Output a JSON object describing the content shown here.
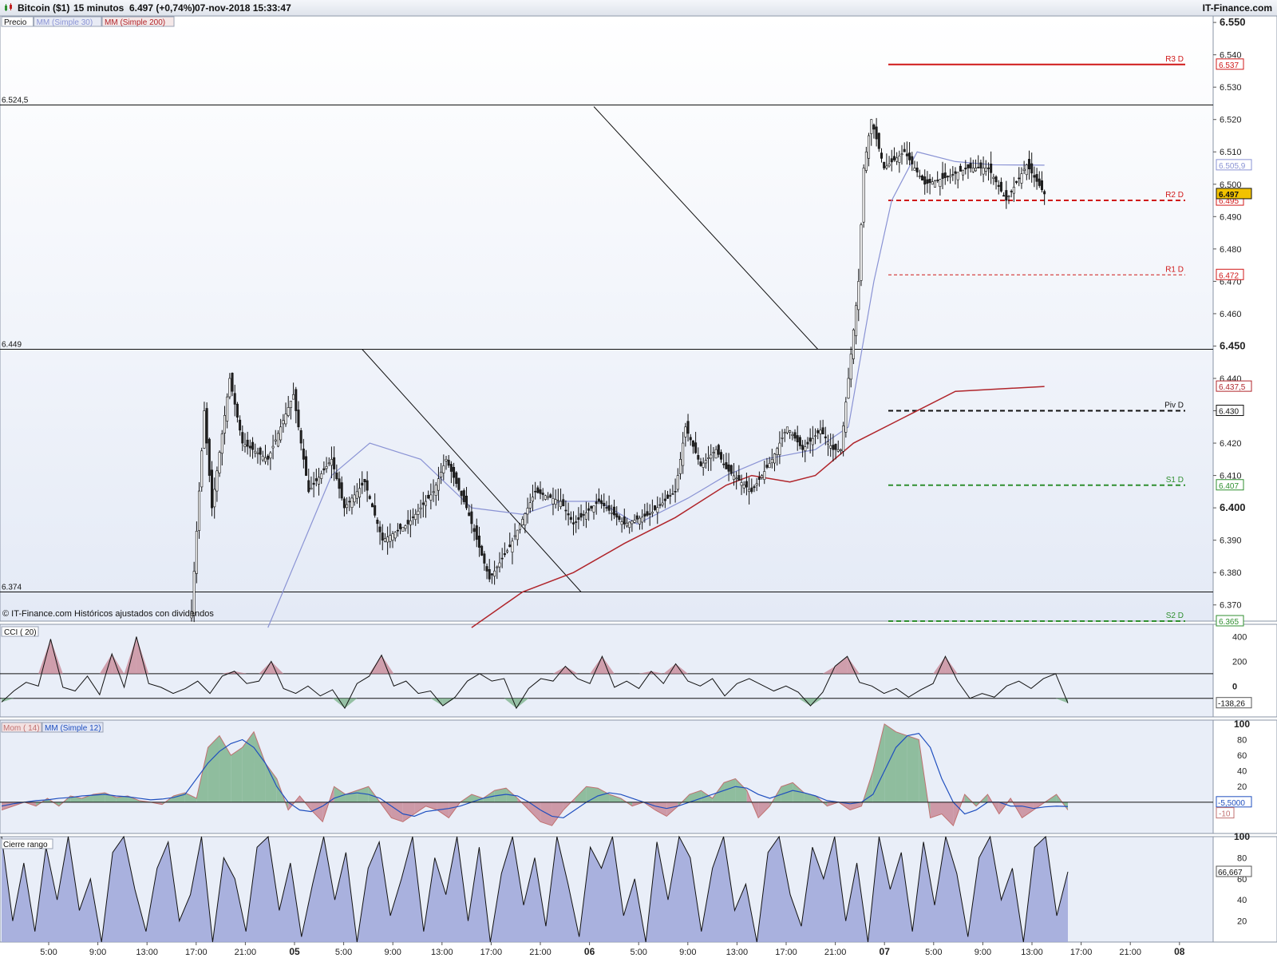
{
  "header": {
    "symbol": "Bitcoin ($1)",
    "interval": "15 minutos",
    "quote": "6.497 (+0,74%)",
    "datetime": "07-nov-2018 15:33:47",
    "brand": "IT-Finance.com"
  },
  "colors": {
    "price_up": "#ffffff",
    "price_down": "#222222",
    "ma30": "#8a93d4",
    "ma200": "#b0252b",
    "resistance": "#d01818",
    "support": "#2f8f2f",
    "pivot": "#111111",
    "panel_bg": "#e9eef8",
    "osc_pos": "#7fb48e",
    "osc_neg": "#c88a99",
    "range_fill": "#9ea6d9"
  },
  "chart_data": [
    {
      "type": "candlestick",
      "legend": {
        "price": "Precio",
        "ma30": "MM (Simple 30)",
        "ma200": "MM (Simple 200)"
      },
      "watermark": "© IT-Finance.com  Históricos ajustados con dividendos",
      "ylim": [
        6.365,
        6.552
      ],
      "x_ticks": [
        "5:00",
        "9:00",
        "13:00",
        "17:00",
        "21:00",
        "05",
        "5:00",
        "9:00",
        "13:00",
        "17:00",
        "21:00",
        "06",
        "5:00",
        "9:00",
        "13:00",
        "17:00",
        "21:00",
        "07",
        "5:00",
        "9:00",
        "13:00",
        "17:00",
        "21:00",
        "08"
      ],
      "y_ticks": [
        "6.550",
        "6.540",
        "6.530",
        "6.520",
        "6.510",
        "6.500",
        "6.490",
        "6.480",
        "6.470",
        "6.460",
        "6.450",
        "6.440",
        "6.430",
        "6.420",
        "6.410",
        "6.400",
        "6.390",
        "6.380",
        "6.370"
      ],
      "horizontal_lines": [
        {
          "label": "6.524,5",
          "value": 6.5245
        },
        {
          "label": "6.449",
          "value": 6.449
        },
        {
          "label": "6.374",
          "value": 6.374
        }
      ],
      "pivots": [
        {
          "name": "R3 D",
          "value": 6.537,
          "label": "6.537"
        },
        {
          "name": "R2 D",
          "value": 6.495,
          "label": "6.495"
        },
        {
          "name": "R1 D",
          "value": 6.472,
          "label": "6.472"
        },
        {
          "name": "Piv D",
          "value": 6.43,
          "label": "6.430"
        },
        {
          "name": "S1 D",
          "value": 6.407,
          "label": "6.407"
        },
        {
          "name": "S2 D",
          "value": 6.365,
          "label": "6.365"
        }
      ],
      "value_labels": {
        "last": "6.497",
        "ma30": "6.505,9",
        "ma200": "6.437,5"
      },
      "price_path": [
        [
          0,
          6.368
        ],
        [
          5,
          6.43
        ],
        [
          8,
          6.4
        ],
        [
          15,
          6.44
        ],
        [
          20,
          6.42
        ],
        [
          30,
          6.415
        ],
        [
          40,
          6.435
        ],
        [
          46,
          6.405
        ],
        [
          55,
          6.415
        ],
        [
          60,
          6.4
        ],
        [
          68,
          6.408
        ],
        [
          75,
          6.39
        ],
        [
          85,
          6.395
        ],
        [
          95,
          6.405
        ],
        [
          100,
          6.415
        ],
        [
          108,
          6.4
        ],
        [
          117,
          6.378
        ],
        [
          125,
          6.388
        ],
        [
          135,
          6.405
        ],
        [
          145,
          6.402
        ],
        [
          150,
          6.395
        ],
        [
          160,
          6.402
        ],
        [
          170,
          6.395
        ],
        [
          180,
          6.398
        ],
        [
          190,
          6.405
        ],
        [
          194,
          6.425
        ],
        [
          200,
          6.413
        ],
        [
          206,
          6.418
        ],
        [
          210,
          6.412
        ],
        [
          220,
          6.405
        ],
        [
          228,
          6.415
        ],
        [
          234,
          6.425
        ],
        [
          240,
          6.418
        ],
        [
          247,
          6.424
        ],
        [
          252,
          6.418
        ],
        [
          255,
          6.418
        ],
        [
          258,
          6.44
        ],
        [
          262,
          6.47
        ],
        [
          264,
          6.505
        ],
        [
          267,
          6.52
        ],
        [
          272,
          6.505
        ],
        [
          280,
          6.51
        ],
        [
          288,
          6.5
        ],
        [
          296,
          6.502
        ],
        [
          305,
          6.505
        ],
        [
          313,
          6.505
        ],
        [
          320,
          6.495
        ],
        [
          328,
          6.506
        ],
        [
          335,
          6.497
        ]
      ],
      "ma30_path": [
        [
          30,
          6.363
        ],
        [
          55,
          6.41
        ],
        [
          70,
          6.42
        ],
        [
          90,
          6.415
        ],
        [
          110,
          6.4
        ],
        [
          130,
          6.398
        ],
        [
          145,
          6.402
        ],
        [
          160,
          6.402
        ],
        [
          175,
          6.395
        ],
        [
          195,
          6.403
        ],
        [
          210,
          6.41
        ],
        [
          225,
          6.415
        ],
        [
          245,
          6.418
        ],
        [
          258,
          6.425
        ],
        [
          268,
          6.47
        ],
        [
          275,
          6.495
        ],
        [
          285,
          6.51
        ],
        [
          300,
          6.507
        ],
        [
          315,
          6.506
        ],
        [
          335,
          6.5059
        ]
      ],
      "ma200_path": [
        [
          110,
          6.363
        ],
        [
          130,
          6.374
        ],
        [
          150,
          6.38
        ],
        [
          170,
          6.389
        ],
        [
          190,
          6.397
        ],
        [
          210,
          6.407
        ],
        [
          220,
          6.41
        ],
        [
          235,
          6.408
        ],
        [
          245,
          6.41
        ],
        [
          260,
          6.42
        ],
        [
          280,
          6.428
        ],
        [
          300,
          6.436
        ],
        [
          335,
          6.4375
        ]
      ],
      "trendlines": [
        {
          "from": [
            67,
            6.449
          ],
          "to": [
            153,
            6.374
          ]
        },
        {
          "from": [
            158,
            6.524
          ],
          "to": [
            246,
            6.449
          ]
        }
      ]
    },
    {
      "type": "line",
      "legend": "CCI ( 20)",
      "ylim": [
        -250,
        500
      ],
      "y_ticks": [
        "400",
        "200",
        "0"
      ],
      "reference_lines": [
        100,
        -100
      ],
      "last_label": "-138,26",
      "series": [
        {
          "values": [
            -130,
            -40,
            30,
            0,
            380,
            -10,
            -40,
            80,
            -70,
            260,
            -10,
            400,
            20,
            -10,
            -60,
            -20,
            40,
            -60,
            80,
            120,
            20,
            40,
            200,
            -20,
            -60,
            0,
            -80,
            -30,
            -180,
            20,
            80,
            250,
            0,
            40,
            -60,
            -40,
            -160,
            -90,
            40,
            100,
            40,
            60,
            -180,
            -20,
            60,
            40,
            160,
            60,
            20,
            240,
            -10,
            40,
            -20,
            120,
            20,
            180,
            40,
            0,
            60,
            -80,
            20,
            60,
            10,
            -40,
            0,
            -50,
            -160,
            -50,
            160,
            240,
            30,
            0,
            -60,
            -20,
            -90,
            -30,
            20,
            240,
            40,
            -100,
            -60,
            -90,
            0,
            40,
            -20,
            60,
            100,
            -138
          ]
        }
      ]
    },
    {
      "type": "area",
      "legend": {
        "mom": "Mom ( 14)",
        "ma": "MM (Simple 12)"
      },
      "ylim": [
        -40,
        105
      ],
      "y_ticks": [
        "100",
        "80",
        "60",
        "40",
        "20",
        "0"
      ],
      "last_labels": [
        "-5,5000",
        "-10"
      ],
      "series": [
        {
          "name": "Mom ( 14)",
          "values": [
            -10,
            -5,
            0,
            -5,
            5,
            -5,
            8,
            5,
            10,
            12,
            6,
            8,
            2,
            0,
            -3,
            8,
            12,
            5,
            70,
            85,
            60,
            70,
            90,
            50,
            30,
            -10,
            8,
            -10,
            -25,
            20,
            10,
            15,
            20,
            0,
            -20,
            -25,
            -15,
            -5,
            -10,
            -20,
            0,
            10,
            5,
            15,
            18,
            5,
            -10,
            -25,
            -30,
            -10,
            5,
            20,
            18,
            10,
            5,
            -5,
            0,
            -10,
            -18,
            -5,
            10,
            15,
            5,
            25,
            30,
            15,
            -20,
            -5,
            20,
            25,
            12,
            8,
            -5,
            0,
            -10,
            -5,
            40,
            100,
            90,
            85,
            80,
            -20,
            -15,
            -30,
            10,
            -5,
            10,
            -15,
            5,
            -20,
            -10,
            0,
            10,
            -10
          ]
        },
        {
          "name": "MM (Simple 12)",
          "values": [
            -5,
            -2,
            0,
            2,
            3,
            5,
            6,
            8,
            9,
            10,
            8,
            7,
            5,
            3,
            4,
            6,
            10,
            30,
            50,
            65,
            75,
            80,
            70,
            50,
            20,
            0,
            -10,
            -12,
            -5,
            5,
            10,
            12,
            10,
            5,
            -5,
            -15,
            -18,
            -12,
            -10,
            -8,
            -5,
            0,
            5,
            8,
            10,
            8,
            0,
            -10,
            -18,
            -20,
            -10,
            0,
            8,
            12,
            10,
            5,
            0,
            -5,
            -8,
            -5,
            0,
            5,
            10,
            15,
            20,
            18,
            10,
            5,
            10,
            15,
            12,
            8,
            2,
            0,
            -2,
            0,
            10,
            40,
            70,
            85,
            88,
            70,
            30,
            0,
            -15,
            -10,
            0,
            0,
            -5,
            -5,
            -8,
            -6,
            -5,
            -5.5
          ]
        }
      ]
    },
    {
      "type": "area",
      "legend": "Cierre rango",
      "ylim": [
        0,
        100
      ],
      "y_ticks": [
        "100",
        "80",
        "60",
        "40",
        "20"
      ],
      "last_label": "66,667",
      "series": [
        {
          "values": [
            100,
            20,
            75,
            10,
            90,
            40,
            100,
            30,
            60,
            0,
            85,
            100,
            50,
            10,
            70,
            95,
            20,
            45,
            100,
            0,
            80,
            60,
            10,
            90,
            100,
            30,
            75,
            5,
            55,
            100,
            40,
            85,
            0,
            70,
            95,
            25,
            60,
            100,
            10,
            80,
            45,
            100,
            20,
            90,
            0,
            65,
            100,
            35,
            80,
            15,
            100,
            55,
            5,
            90,
            70,
            100,
            25,
            60,
            0,
            95,
            40,
            100,
            80,
            10,
            70,
            100,
            30,
            55,
            0,
            85,
            100,
            45,
            15,
            90,
            60,
            100,
            20,
            75,
            0,
            100,
            50,
            85,
            10,
            95,
            35,
            100,
            65,
            5,
            80,
            100,
            40,
            70,
            0,
            90,
            100,
            25,
            66.667
          ]
        }
      ]
    }
  ]
}
